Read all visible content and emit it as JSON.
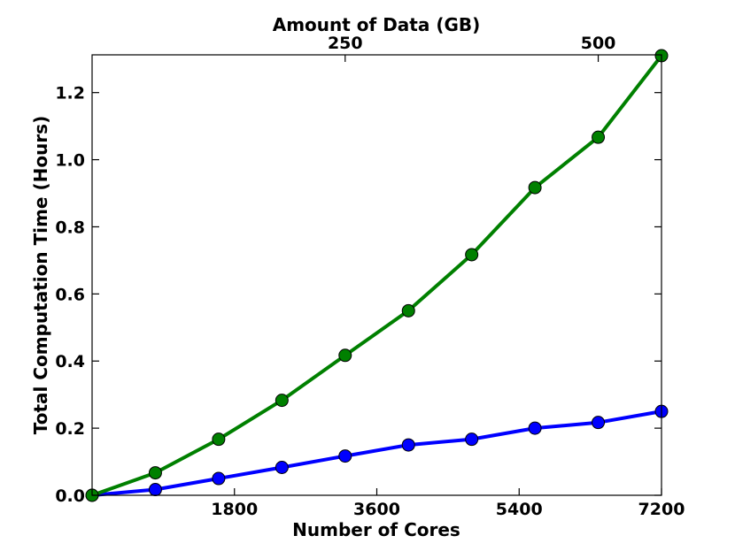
{
  "chart_data": {
    "type": "line",
    "xlabel": "Number of Cores",
    "ylabel": "Total Computation Time (Hours)",
    "secondary_xlabel": "Amount of Data (GB)",
    "xlim": [
      0,
      7200
    ],
    "ylim": [
      0,
      1.3125
    ],
    "secondary_xlim": [
      0,
      562.5
    ],
    "x_ticks": [
      1800,
      3600,
      5400,
      7200
    ],
    "x_tick_labels": [
      "1800",
      "3600",
      "5400",
      "7200"
    ],
    "secondary_x_ticks": [
      250,
      500
    ],
    "secondary_x_tick_labels": [
      "250",
      "500"
    ],
    "y_ticks": [
      0.0,
      0.2,
      0.4,
      0.6,
      0.8,
      1.0,
      1.2
    ],
    "y_tick_labels": [
      "0.0",
      "0.2",
      "0.4",
      "0.6",
      "0.8",
      "1.0",
      "1.2"
    ],
    "grid": false,
    "legend": false,
    "x": [
      0,
      800,
      1600,
      2400,
      3200,
      4000,
      4800,
      5600,
      6400,
      7200
    ],
    "series": [
      {
        "color": "#0000ff",
        "values": [
          0.0,
          0.017,
          0.05,
          0.083,
          0.117,
          0.15,
          0.167,
          0.2,
          0.217,
          0.25
        ]
      },
      {
        "color": "#008000",
        "values": [
          0.0,
          0.067,
          0.167,
          0.283,
          0.417,
          0.55,
          0.717,
          0.917,
          1.067,
          1.31
        ]
      }
    ]
  }
}
